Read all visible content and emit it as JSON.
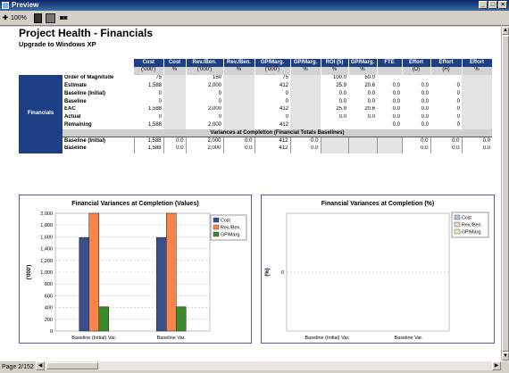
{
  "window": {
    "title": "Preview"
  },
  "toolbar": {
    "zoom_label": "100%"
  },
  "report": {
    "title": "Project Health - Financials",
    "subtitle": "Upgrade to Windows XP"
  },
  "table": {
    "side_label": "Financials",
    "columns": [
      {
        "header": "Cost",
        "unit": "('000')"
      },
      {
        "header": "Cost",
        "unit": "%"
      },
      {
        "header": "Rev./Ben.",
        "unit": "('000')"
      },
      {
        "header": "Rev./Ben.",
        "unit": "%"
      },
      {
        "header": "GP/Marg.",
        "unit": "('000')"
      },
      {
        "header": "GP/Marg.",
        "unit": "%"
      },
      {
        "header": "ROI (5)",
        "unit": "%"
      },
      {
        "header": "GP/Marg.",
        "unit": "%"
      },
      {
        "header": "FTE",
        "unit": ""
      },
      {
        "header": "Effort",
        "unit": "(D)"
      },
      {
        "header": "Effort",
        "unit": "(H)"
      },
      {
        "header": "Effort",
        "unit": "%"
      }
    ],
    "rows": [
      {
        "label": "Order of Magnitude",
        "cells": [
          "75",
          "",
          "150",
          "",
          "75",
          "",
          "100.0",
          "50.0",
          "",
          "",
          "",
          ""
        ]
      },
      {
        "label": "Estimate",
        "cells": [
          "1,588",
          "",
          "2,000",
          "",
          "412",
          "",
          "25.9",
          "20.6",
          "0.0",
          "0.0",
          "0",
          ""
        ]
      },
      {
        "label": "Baseline (Initial)",
        "cells": [
          "0",
          "",
          "0",
          "",
          "0",
          "",
          "0.0",
          "0.0",
          "0.0",
          "0.0",
          "0",
          ""
        ]
      },
      {
        "label": "Baseline",
        "cells": [
          "0",
          "",
          "0",
          "",
          "0",
          "",
          "0.0",
          "0.0",
          "0.0",
          "0.0",
          "0",
          ""
        ]
      },
      {
        "label": "EAC",
        "cells": [
          "1,588",
          "",
          "2,000",
          "",
          "412",
          "",
          "25.9",
          "20.6",
          "0.0",
          "0.0",
          "0",
          ""
        ]
      },
      {
        "label": "Actual",
        "cells": [
          "0",
          "",
          "0",
          "",
          "0",
          "",
          "0.0",
          "0.0",
          "0.0",
          "0.0",
          "0",
          ""
        ]
      },
      {
        "label": "Remaining",
        "cells": [
          "1,588",
          "",
          "2,000",
          "",
          "412",
          "",
          "",
          "",
          "0.0",
          "0.0",
          "0",
          ""
        ]
      }
    ],
    "variance_heading": "Variances at Completion (Financial Totals Baselines)",
    "variance_rows": [
      {
        "label": "Baseline (Initial)",
        "cells": [
          "1,588",
          "0.0",
          "2,000",
          "0.0",
          "412",
          "0.0",
          "",
          "",
          "",
          "0.0",
          "0.0",
          "0.0"
        ]
      },
      {
        "label": "Baseline",
        "cells": [
          "1,588",
          "0.0",
          "2,000",
          "0.0",
          "412",
          "0.0",
          "",
          "",
          "",
          "0.0",
          "0.0",
          "0.0"
        ]
      }
    ]
  },
  "chart_data": [
    {
      "type": "bar",
      "title": "Financial Variances at Completion (Values)",
      "ylabel": "('000')",
      "categories": [
        "Baseline (Initial)  Var.",
        "Baseline Var."
      ],
      "ylim": [
        0,
        2000
      ],
      "yticks": [
        "0",
        "200",
        "400",
        "600",
        "800",
        "1,000",
        "1,200",
        "1,400",
        "1,600",
        "1,800",
        "2,000"
      ],
      "grid": true,
      "legend": "top-right",
      "series": [
        {
          "name": "Cost",
          "color": "#3a4f8c",
          "values": [
            1588,
            1588
          ]
        },
        {
          "name": "Rev./Ben.",
          "color": "#f7844a",
          "values": [
            2000,
            2000
          ]
        },
        {
          "name": "GP/Marg.",
          "color": "#3a8a2a",
          "values": [
            412,
            412
          ]
        }
      ]
    },
    {
      "type": "bar",
      "title": "Financial Variances at Completion (%)",
      "ylabel": "(%)",
      "categories": [
        "Baseline (Initial)  Var.",
        "Baseline Var."
      ],
      "yticks": [
        "0"
      ],
      "grid": true,
      "legend": "top-right",
      "series": [
        {
          "name": "Cost",
          "color": "#b4c4e4",
          "values": [
            0,
            0
          ]
        },
        {
          "name": "Rev./Ben.",
          "color": "#f4d2bc",
          "values": [
            0,
            0
          ]
        },
        {
          "name": "GP/Marg.",
          "color": "#e6ecc0",
          "values": [
            0,
            0
          ]
        }
      ]
    }
  ],
  "status": {
    "page_text": "Page 2/152"
  }
}
